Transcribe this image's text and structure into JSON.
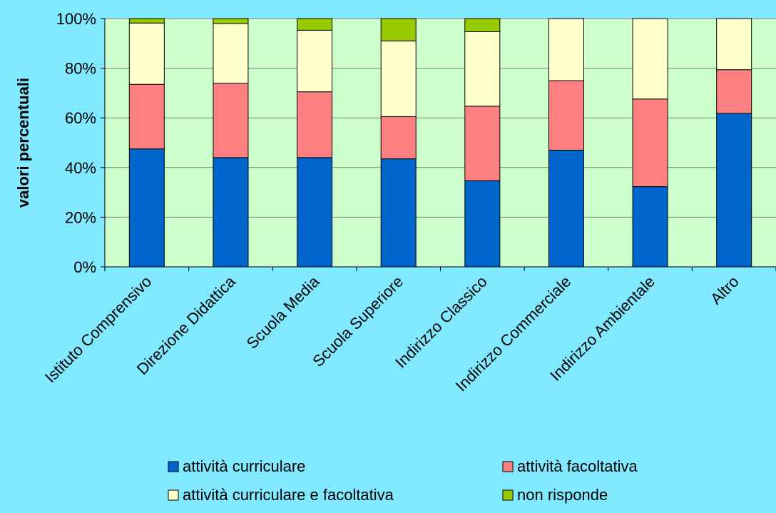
{
  "chart_data": {
    "type": "bar",
    "stacked": true,
    "percent": true,
    "title": "",
    "xlabel": "",
    "ylabel": "valori percentuali",
    "ylim": [
      0,
      100
    ],
    "yticks": [
      "0%",
      "20%",
      "40%",
      "60%",
      "80%",
      "100%"
    ],
    "grid": true,
    "legend_position": "bottom",
    "plot_background": "#CCFFCC",
    "page_background": "#80E8FF",
    "categories": [
      "Istituto Comprensivo",
      "Direzione Didattica",
      "Scuola Media",
      "Scuola Superiore",
      "Indirizzo Classico",
      "Indirizzo Commerciale",
      "Indirizzo Ambientale",
      "Altro"
    ],
    "series": [
      {
        "name": "attività curriculare",
        "color": "#0066CC",
        "values": [
          47.5,
          44,
          44,
          43.5,
          34.7,
          47,
          32.3,
          61.8
        ]
      },
      {
        "name": "attività facoltativa",
        "color": "#FF8080",
        "values": [
          26,
          30,
          26.5,
          17,
          30,
          28,
          35.3,
          17.6
        ]
      },
      {
        "name": "attività curriculare e facoltativa",
        "color": "#FFFFCC",
        "values": [
          24.7,
          24,
          24.8,
          30.5,
          30,
          25,
          32.4,
          20.6
        ]
      },
      {
        "name": "non risponde",
        "color": "#99CC00",
        "values": [
          1.8,
          2,
          4.7,
          9,
          5.3,
          0,
          0,
          0
        ]
      }
    ]
  }
}
